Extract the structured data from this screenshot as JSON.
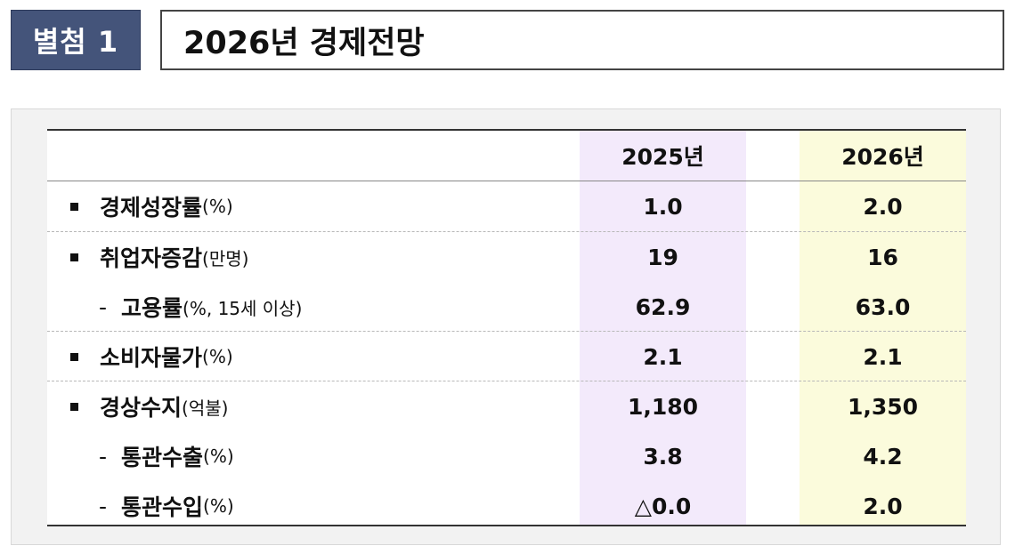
{
  "badge": "별첨 1",
  "title": "2026년 경제전망",
  "headers": {
    "y2025": "2025년",
    "y2026": "2026년"
  },
  "rows": [
    {
      "marker": "bullet",
      "label": "경제성장률",
      "unit": "(%)",
      "v2025": "1.0",
      "v2026": "2.0"
    },
    {
      "marker": "bullet",
      "label": "취업자증감",
      "unit": "(만명)",
      "v2025": "19",
      "v2026": "16"
    },
    {
      "marker": "dash",
      "dash": "-",
      "label": "고용률",
      "unit": "(%, 15세 이상)",
      "v2025": "62.9",
      "v2026": "63.0"
    },
    {
      "marker": "bullet",
      "label": "소비자물가",
      "unit": "(%)",
      "v2025": "2.1",
      "v2026": "2.1"
    },
    {
      "marker": "bullet",
      "label": "경상수지",
      "unit": "(억불)",
      "v2025": "1,180",
      "v2026": "1,350"
    },
    {
      "marker": "dash",
      "dash": "-",
      "label": "통관수출",
      "unit": "(%)",
      "v2025": "3.8",
      "v2026": "4.2"
    },
    {
      "marker": "dash",
      "dash": "-",
      "label": "통관수입",
      "unit": "(%)",
      "v2025": "△0.0",
      "v2026": "2.0"
    }
  ]
}
